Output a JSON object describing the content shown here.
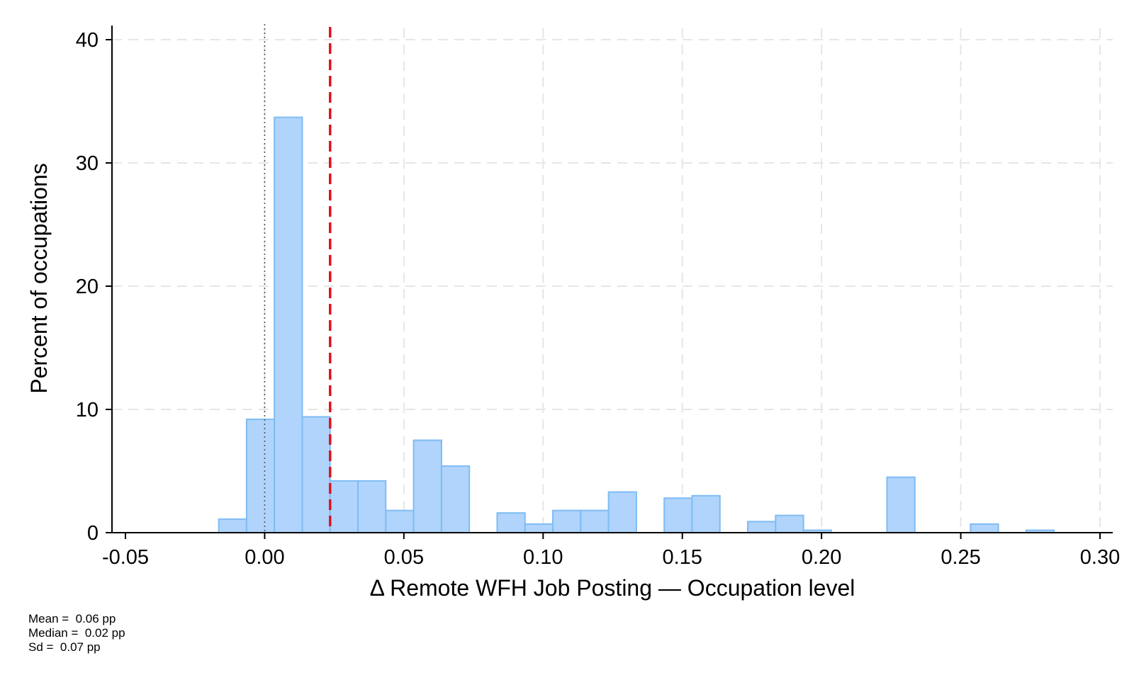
{
  "chart_data": {
    "type": "histogram",
    "title": "",
    "xlabel": "Δ Remote WFH Job Posting — Occupation level",
    "ylabel": "Percent of occupations",
    "xlim": [
      -0.05,
      0.3
    ],
    "ylim": [
      0,
      40
    ],
    "x_ticks": [
      -0.05,
      0.0,
      0.05,
      0.1,
      0.15,
      0.2,
      0.25,
      0.3
    ],
    "x_tick_labels": [
      "-0.05",
      "0.00",
      "0.05",
      "0.10",
      "0.15",
      "0.20",
      "0.25",
      "0.30"
    ],
    "y_ticks": [
      0,
      10,
      20,
      30,
      40
    ],
    "y_tick_labels": [
      "0",
      "10",
      "20",
      "30",
      "40"
    ],
    "grid": true,
    "bin_width": 0.01,
    "bins": [
      {
        "x0": -0.0165,
        "x1": -0.0065,
        "value": 1.1
      },
      {
        "x0": -0.0065,
        "x1": 0.0035,
        "value": 9.2
      },
      {
        "x0": 0.0035,
        "x1": 0.0135,
        "value": 33.7
      },
      {
        "x0": 0.0135,
        "x1": 0.0235,
        "value": 9.4
      },
      {
        "x0": 0.0235,
        "x1": 0.0335,
        "value": 4.2
      },
      {
        "x0": 0.0335,
        "x1": 0.0435,
        "value": 4.2
      },
      {
        "x0": 0.0435,
        "x1": 0.0535,
        "value": 1.8
      },
      {
        "x0": 0.0535,
        "x1": 0.0635,
        "value": 7.5
      },
      {
        "x0": 0.0635,
        "x1": 0.0735,
        "value": 5.4
      },
      {
        "x0": 0.0735,
        "x1": 0.0835,
        "value": 0
      },
      {
        "x0": 0.0835,
        "x1": 0.0935,
        "value": 1.6
      },
      {
        "x0": 0.0935,
        "x1": 0.1035,
        "value": 0.7
      },
      {
        "x0": 0.1035,
        "x1": 0.1135,
        "value": 1.8
      },
      {
        "x0": 0.1135,
        "x1": 0.1235,
        "value": 1.8
      },
      {
        "x0": 0.1235,
        "x1": 0.1335,
        "value": 3.3
      },
      {
        "x0": 0.1335,
        "x1": 0.1435,
        "value": 0
      },
      {
        "x0": 0.1435,
        "x1": 0.1535,
        "value": 2.8
      },
      {
        "x0": 0.1535,
        "x1": 0.1635,
        "value": 3.0
      },
      {
        "x0": 0.1635,
        "x1": 0.1735,
        "value": 0
      },
      {
        "x0": 0.1735,
        "x1": 0.1835,
        "value": 0.9
      },
      {
        "x0": 0.1835,
        "x1": 0.1935,
        "value": 1.4
      },
      {
        "x0": 0.1935,
        "x1": 0.2035,
        "value": 0.2
      },
      {
        "x0": 0.2035,
        "x1": 0.2135,
        "value": 0
      },
      {
        "x0": 0.2135,
        "x1": 0.2235,
        "value": 0
      },
      {
        "x0": 0.2235,
        "x1": 0.2335,
        "value": 4.5
      },
      {
        "x0": 0.2335,
        "x1": 0.2435,
        "value": 0
      },
      {
        "x0": 0.2435,
        "x1": 0.2535,
        "value": 0
      },
      {
        "x0": 0.2535,
        "x1": 0.2635,
        "value": 0.7
      },
      {
        "x0": 0.2635,
        "x1": 0.2735,
        "value": 0
      },
      {
        "x0": 0.2735,
        "x1": 0.2835,
        "value": 0.2
      }
    ],
    "reference_lines": [
      {
        "x": 0.0,
        "style": "dotted",
        "color": "#555555"
      },
      {
        "x": 0.0235,
        "style": "dashed",
        "color": "#e3111b"
      }
    ],
    "bar_fill": "#b0d4fb",
    "bar_stroke": "#7fbcf3",
    "notes": {
      "mean": "Mean =  0.06 pp",
      "median": "Median =  0.02 pp",
      "sd": "Sd =  0.07 pp"
    }
  }
}
